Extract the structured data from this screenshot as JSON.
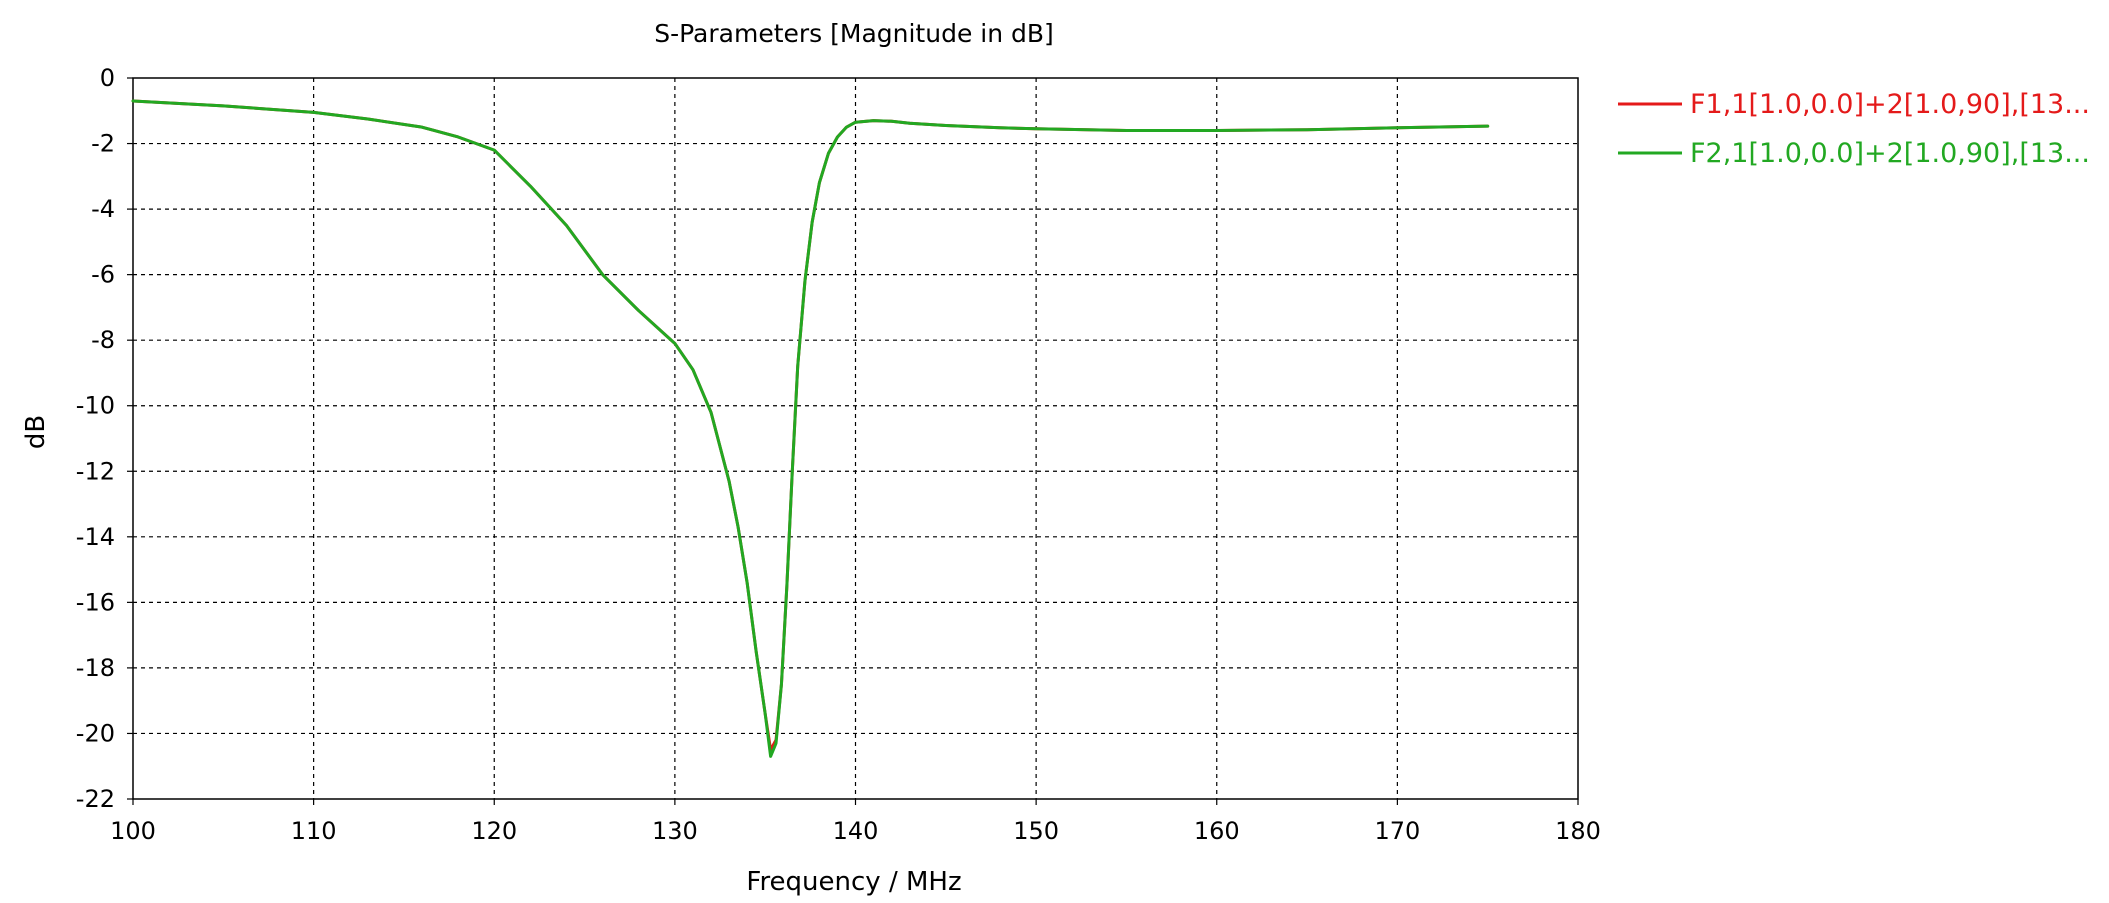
{
  "chart_data": {
    "type": "line",
    "title": "S-Parameters [Magnitude in dB]",
    "xlabel": "Frequency / MHz",
    "ylabel": "dB",
    "xlim": [
      100,
      180
    ],
    "ylim": [
      -22,
      0
    ],
    "xticks": [
      100,
      110,
      120,
      130,
      140,
      150,
      160,
      170,
      180
    ],
    "yticks": [
      0,
      -2,
      -4,
      -6,
      -8,
      -10,
      -12,
      -14,
      -16,
      -18,
      -20,
      -22
    ],
    "xtick_labels": [
      "100",
      "110",
      "120",
      "130",
      "140",
      "150",
      "160",
      "170",
      "180"
    ],
    "ytick_labels": [
      "0",
      "-2",
      "-4",
      "-6",
      "-8",
      "-10",
      "-12",
      "-14",
      "-16",
      "-18",
      "-20",
      "-22"
    ],
    "grid": true,
    "legend_position": "right",
    "series": [
      {
        "name": "F1,1[1.0,0.0]+2[1.0,90],[13...",
        "color": "#e41a1a",
        "x": [
          100,
          105,
          110,
          113,
          116,
          118,
          120,
          122,
          124,
          126,
          128,
          130,
          131,
          132,
          133,
          133.5,
          134,
          134.5,
          135,
          135.3,
          135.6,
          135.9,
          136.2,
          136.5,
          136.8,
          137.2,
          137.6,
          138,
          138.5,
          139,
          139.5,
          140,
          141,
          142,
          143,
          145,
          148,
          150,
          155,
          160,
          165,
          170,
          175
        ],
        "y": [
          -0.7,
          -0.85,
          -1.05,
          -1.25,
          -1.5,
          -1.8,
          -2.2,
          -3.3,
          -4.5,
          -6.0,
          -7.1,
          -8.1,
          -8.9,
          -10.2,
          -12.3,
          -13.7,
          -15.4,
          -17.5,
          -19.4,
          -20.5,
          -20.2,
          -18.5,
          -15.5,
          -12.0,
          -8.8,
          -6.2,
          -4.4,
          -3.2,
          -2.3,
          -1.8,
          -1.5,
          -1.35,
          -1.3,
          -1.32,
          -1.38,
          -1.45,
          -1.52,
          -1.55,
          -1.6,
          -1.6,
          -1.58,
          -1.52,
          -1.47
        ]
      },
      {
        "name": "F2,1[1.0,0.0]+2[1.0,90],[13...",
        "color": "#22a822",
        "x": [
          100,
          105,
          110,
          113,
          116,
          118,
          120,
          122,
          124,
          126,
          128,
          130,
          131,
          132,
          133,
          133.5,
          134,
          134.5,
          135,
          135.3,
          135.6,
          135.9,
          136.2,
          136.5,
          136.8,
          137.2,
          137.6,
          138,
          138.5,
          139,
          139.5,
          140,
          141,
          142,
          143,
          145,
          148,
          150,
          155,
          160,
          165,
          170,
          175
        ],
        "y": [
          -0.7,
          -0.85,
          -1.05,
          -1.25,
          -1.5,
          -1.8,
          -2.2,
          -3.3,
          -4.5,
          -6.0,
          -7.1,
          -8.1,
          -8.9,
          -10.2,
          -12.3,
          -13.7,
          -15.4,
          -17.5,
          -19.4,
          -20.7,
          -20.3,
          -18.5,
          -15.5,
          -12.0,
          -8.8,
          -6.2,
          -4.4,
          -3.2,
          -2.3,
          -1.8,
          -1.5,
          -1.35,
          -1.3,
          -1.32,
          -1.38,
          -1.45,
          -1.52,
          -1.55,
          -1.6,
          -1.6,
          -1.58,
          -1.52,
          -1.47
        ]
      }
    ]
  }
}
